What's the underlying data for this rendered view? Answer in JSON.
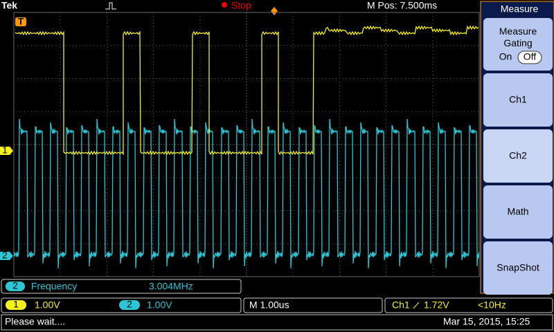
{
  "header": {
    "brand": "Tek",
    "state": "Stop",
    "position": "M Pos: 7.500ms"
  },
  "markers": {
    "trigger": "T",
    "ch1": "1",
    "ch2": "2"
  },
  "menu": {
    "title": "Measure",
    "gating_title": "Measure Gating",
    "gating_on": "On",
    "gating_off": "Off",
    "items": [
      "Ch1",
      "Ch2",
      "Math",
      "SnapShot"
    ]
  },
  "measurement": {
    "channel": "2",
    "name": "Frequency",
    "value": "3.004MHz"
  },
  "status": {
    "ch1_badge": "1",
    "ch1_scale": "1.00V",
    "ch2_badge": "2",
    "ch2_scale": "1.00V",
    "timebase": "M 1.00us",
    "trigger_source": "Ch1",
    "trigger_level": "1.72V",
    "trigger_freq": "<10Hz",
    "message": "Please wait....",
    "datetime": "Mar 15, 2015, 15:25"
  }
}
